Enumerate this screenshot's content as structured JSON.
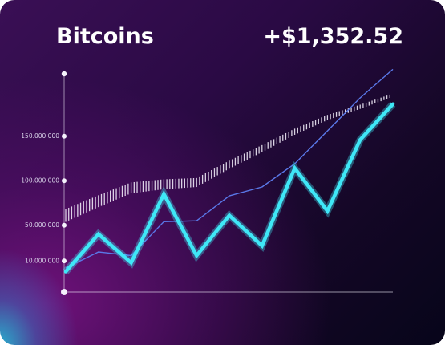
{
  "header": {
    "title": "Bitcoins",
    "change": "+$1,352.52"
  },
  "colors": {
    "primary_line": "#3fe7f7",
    "secondary_line": "#5a78e8",
    "band": "#f2eefa",
    "axis": "#f4f1fb"
  },
  "chart_data": {
    "type": "line",
    "title": "",
    "xlabel": "",
    "ylabel": "",
    "y_ticks": [
      {
        "label": "10.000.000",
        "value": 10000000
      },
      {
        "label": "50.000.000",
        "value": 50000000
      },
      {
        "label": "100.000.000",
        "value": 100000000
      },
      {
        "label": "150.000.000",
        "value": 150000000
      }
    ],
    "ylim": [
      -25000000,
      220000000
    ],
    "grid": false,
    "series": [
      {
        "style": "primary",
        "x": [
          0,
          1,
          2,
          3,
          4,
          5,
          6,
          7,
          8,
          9,
          10
        ],
        "y": [
          -2000000,
          40000000,
          8000000,
          85000000,
          16000000,
          61000000,
          27000000,
          114000000,
          66000000,
          146000000,
          186000000
        ]
      },
      {
        "style": "secondary",
        "x": [
          0,
          1,
          2,
          3,
          4,
          5,
          6,
          7,
          8,
          9,
          10
        ],
        "y": [
          2000000,
          20000000,
          16000000,
          54000000,
          55000000,
          83000000,
          93000000,
          119000000,
          156000000,
          193000000,
          225000000
        ]
      },
      {
        "style": "band",
        "x": [
          0,
          1,
          2,
          3,
          4,
          5,
          6,
          7,
          8,
          9,
          10
        ],
        "y": [
          61000000,
          77000000,
          92000000,
          96000000,
          98000000,
          118000000,
          136000000,
          155000000,
          171000000,
          183000000,
          196000000
        ]
      }
    ]
  }
}
